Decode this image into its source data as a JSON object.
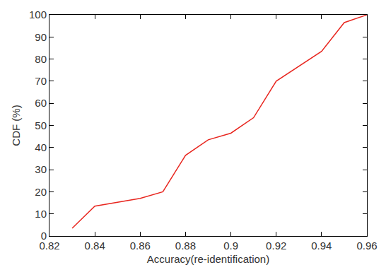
{
  "chart_data": {
    "type": "line",
    "x_label": "Accuracy(re-identification)",
    "y_label": "CDF (%)",
    "series": [
      {
        "name": "CDF",
        "color": "#e8261f",
        "x": [
          0.83,
          0.84,
          0.86,
          0.87,
          0.88,
          0.89,
          0.9,
          0.91,
          0.92,
          0.94,
          0.95,
          0.96
        ],
        "values": [
          3.5,
          13.5,
          17,
          20,
          36.5,
          43.5,
          46.5,
          53.5,
          70,
          83.5,
          96.5,
          100
        ]
      }
    ],
    "xlim": [
      0.82,
      0.96
    ],
    "xticks": [
      0.82,
      0.84,
      0.86,
      0.88,
      0.9,
      0.92,
      0.94,
      0.96
    ],
    "ylim": [
      0,
      100
    ],
    "yticks": [
      0,
      10,
      20,
      30,
      40,
      50,
      60,
      70,
      80,
      90,
      100
    ],
    "grid": false
  }
}
